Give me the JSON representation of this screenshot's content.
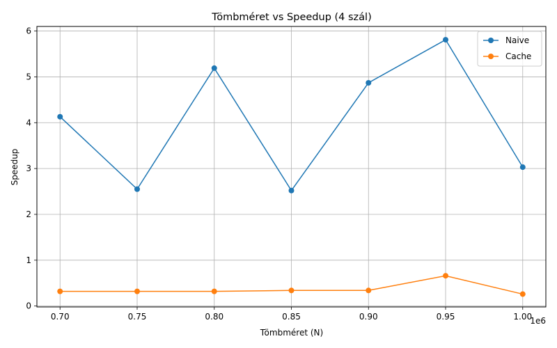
{
  "chart_data": {
    "type": "line",
    "title": "Tömbméret vs Speedup (4 szál)",
    "xlabel": "Tömbméret (N)",
    "ylabel": "Speedup",
    "x_offset_label": "1e6",
    "x": [
      700000,
      750000,
      800000,
      850000,
      900000,
      950000,
      1000000
    ],
    "xlim": [
      685000,
      1015000
    ],
    "ylim": [
      -0.02,
      6.1
    ],
    "x_ticks": [
      700000,
      750000,
      800000,
      850000,
      900000,
      950000,
      1000000
    ],
    "x_tick_labels": [
      "0.70",
      "0.75",
      "0.80",
      "0.85",
      "0.90",
      "0.95",
      "1.00"
    ],
    "y_ticks": [
      0,
      1,
      2,
      3,
      4,
      5,
      6
    ],
    "y_tick_labels": [
      "0",
      "1",
      "2",
      "3",
      "4",
      "5",
      "6"
    ],
    "grid": true,
    "legend_position": "top-right",
    "series": [
      {
        "name": "Naive",
        "color": "#1f77b4",
        "marker": "circle",
        "values": [
          4.13,
          2.55,
          5.19,
          2.52,
          4.87,
          5.81,
          3.03
        ]
      },
      {
        "name": "Cache",
        "color": "#ff7f0e",
        "marker": "circle",
        "values": [
          0.32,
          0.32,
          0.32,
          0.34,
          0.34,
          0.66,
          0.26
        ]
      }
    ]
  }
}
